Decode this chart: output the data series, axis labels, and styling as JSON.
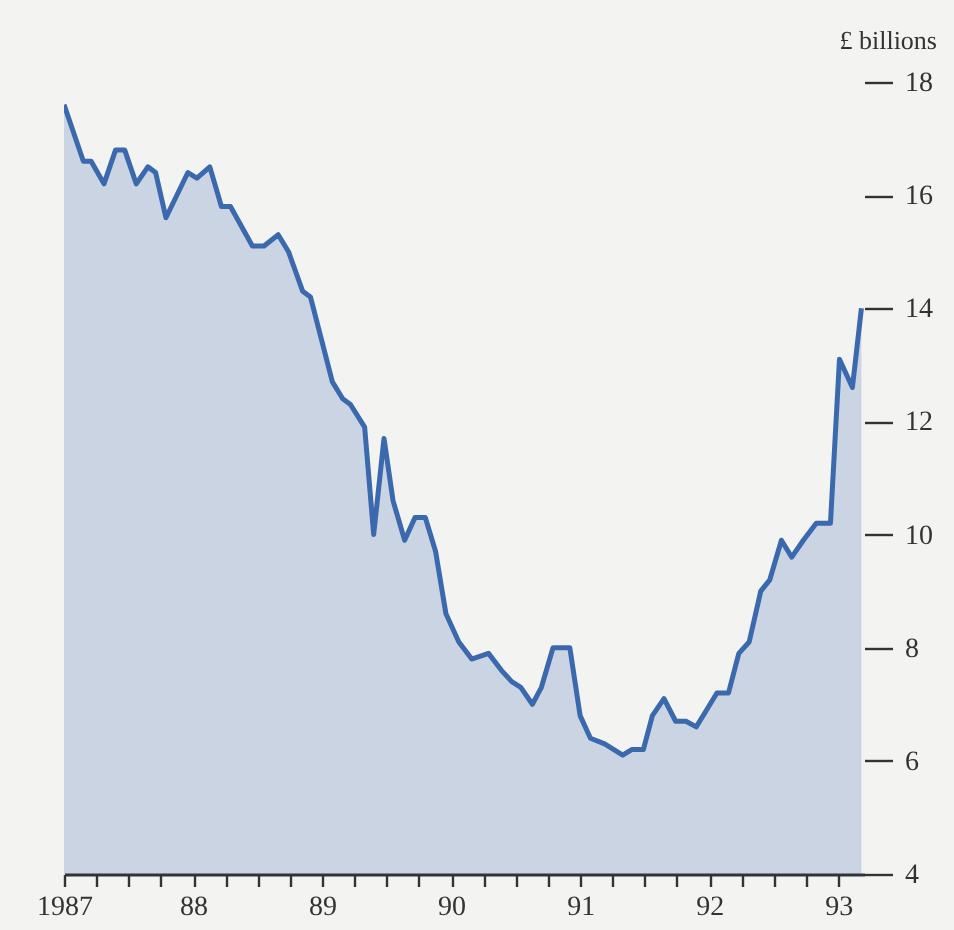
{
  "chart_data": {
    "type": "area",
    "ylabel": "£ billions",
    "x": [
      1987.0,
      1987.15,
      1987.21,
      1987.31,
      1987.4,
      1987.47,
      1987.56,
      1987.65,
      1987.71,
      1987.79,
      1987.96,
      1988.03,
      1988.13,
      1988.22,
      1988.29,
      1988.46,
      1988.55,
      1988.66,
      1988.74,
      1988.85,
      1988.91,
      1989.08,
      1989.16,
      1989.22,
      1989.33,
      1989.4,
      1989.48,
      1989.55,
      1989.64,
      1989.72,
      1989.8,
      1989.88,
      1989.96,
      1990.06,
      1990.16,
      1990.29,
      1990.39,
      1990.47,
      1990.54,
      1990.63,
      1990.7,
      1990.79,
      1990.92,
      1991.0,
      1991.08,
      1991.19,
      1991.33,
      1991.4,
      1991.49,
      1991.56,
      1991.65,
      1991.74,
      1991.82,
      1991.9,
      1991.98,
      1992.06,
      1992.15,
      1992.23,
      1992.31,
      1992.4,
      1992.47,
      1992.56,
      1992.64,
      1992.73,
      1992.83,
      1992.94,
      1993.01,
      1993.11,
      1993.18
    ],
    "series": [
      {
        "color": "#3a6aad",
        "values": [
          17.6,
          16.6,
          16.6,
          16.2,
          16.8,
          16.8,
          16.2,
          16.5,
          16.4,
          15.6,
          16.4,
          16.3,
          16.5,
          15.8,
          15.8,
          15.1,
          15.1,
          15.3,
          15.0,
          14.3,
          14.2,
          12.7,
          12.4,
          12.3,
          11.9,
          10.0,
          11.7,
          10.6,
          9.9,
          10.3,
          10.3,
          9.7,
          8.6,
          8.1,
          7.8,
          7.9,
          7.6,
          7.4,
          7.3,
          7.0,
          7.3,
          8.0,
          8.0,
          6.8,
          6.4,
          6.3,
          6.1,
          6.2,
          6.2,
          6.8,
          7.1,
          6.7,
          6.7,
          6.6,
          6.9,
          7.2,
          7.2,
          7.9,
          8.1,
          9.0,
          9.2,
          9.9,
          9.6,
          9.9,
          10.2,
          10.2,
          13.1,
          12.6,
          14.0
        ]
      }
    ],
    "xlim": [
      1987,
      1993.2
    ],
    "xticks": [
      1987,
      {
        "value": 1987.25,
        "label": null
      },
      {
        "value": 1987.5,
        "label": null
      },
      {
        "value": 1987.75,
        "label": null
      },
      {
        "value": 1988,
        "label": "88"
      },
      {
        "value": 1988.25,
        "label": null
      },
      {
        "value": 1988.5,
        "label": null
      },
      {
        "value": 1988.75,
        "label": null
      },
      {
        "value": 1989,
        "label": "89"
      },
      {
        "value": 1989.25,
        "label": null
      },
      {
        "value": 1989.5,
        "label": null
      },
      {
        "value": 1989.75,
        "label": null
      },
      {
        "value": 1990,
        "label": "90"
      },
      {
        "value": 1990.25,
        "label": null
      },
      {
        "value": 1990.5,
        "label": null
      },
      {
        "value": 1990.75,
        "label": null
      },
      {
        "value": 1991,
        "label": "91"
      },
      {
        "value": 1991.25,
        "label": null
      },
      {
        "value": 1991.5,
        "label": null
      },
      {
        "value": 1991.75,
        "label": null
      },
      {
        "value": 1992,
        "label": "92"
      },
      {
        "value": 1992.25,
        "label": null
      },
      {
        "value": 1992.5,
        "label": null
      },
      {
        "value": 1992.75,
        "label": null
      },
      {
        "value": 1993,
        "label": "93"
      }
    ],
    "ylim": [
      4,
      18
    ],
    "yticks": [
      4,
      6,
      8,
      10,
      12,
      14,
      16,
      18
    ],
    "grid": false
  }
}
